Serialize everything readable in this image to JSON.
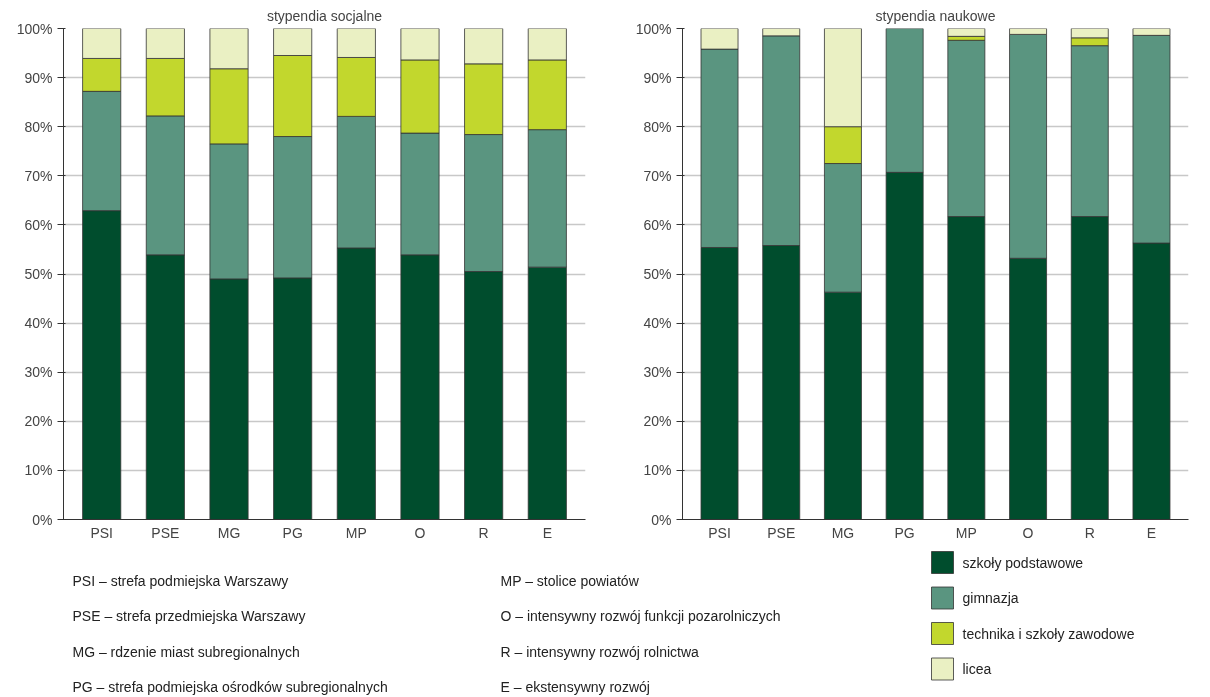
{
  "chart_data": [
    {
      "type": "bar",
      "stacked": true,
      "title": "stypendia socjalne",
      "categories": [
        "PSI",
        "PSE",
        "MG",
        "PG",
        "MP",
        "O",
        "R",
        "E"
      ],
      "series": [
        {
          "color": "#004d2d",
          "values": [
            62.9,
            53.9,
            49.0,
            49.2,
            55.3,
            53.9,
            50.5,
            51.4
          ]
        },
        {
          "color": "#5a9580",
          "values": [
            24.3,
            28.3,
            27.5,
            28.8,
            26.8,
            24.8,
            27.9,
            28.0
          ]
        },
        {
          "color": "#c2d72d",
          "values": [
            6.7,
            11.7,
            15.3,
            16.5,
            12.0,
            14.9,
            14.4,
            14.2
          ]
        },
        {
          "color": "#eaf0c3",
          "values": [
            6.1,
            6.1,
            8.2,
            5.5,
            5.9,
            6.4,
            7.2,
            6.4
          ]
        }
      ],
      "ylim": [
        0,
        100
      ],
      "yticks": [
        {
          "value": 0,
          "label": "0%"
        },
        {
          "value": 10,
          "label": "10%"
        },
        {
          "value": 20,
          "label": "20%"
        },
        {
          "value": 30,
          "label": "30%"
        },
        {
          "value": 40,
          "label": "40%"
        },
        {
          "value": 50,
          "label": "50%"
        },
        {
          "value": 60,
          "label": "60%"
        },
        {
          "value": 70,
          "label": "70%"
        },
        {
          "value": 80,
          "label": "80%"
        },
        {
          "value": 90,
          "label": "90%"
        },
        {
          "value": 100,
          "label": "100%"
        }
      ],
      "grid": "y",
      "annotations": [
        "PSI – strefa podmiejska Warszawy",
        "PSE – strefa przedmiejska Warszawy",
        "MG – rdzenie miast subregionalnych",
        "PG – strefa podmiejska ośrodków subregionalnych",
        "MP – stolice powiatów",
        "O – intensywny rozwój funkcji pozarolniczych",
        "R – intensywny rozwój rolnictwa",
        "E – ekstensywny rozwój"
      ]
    },
    {
      "type": "bar",
      "stacked": true,
      "title": "stypendia naukowe",
      "categories": [
        "PSI",
        "PSE",
        "MG",
        "PG",
        "MP",
        "O",
        "R",
        "E"
      ],
      "series": [
        {
          "name": "szkoły podstawowe",
          "color": "#004d2d",
          "values": [
            55.4,
            55.8,
            46.3,
            70.7,
            61.7,
            53.2,
            61.7,
            56.3
          ]
        },
        {
          "name": "gimnazja",
          "color": "#5a9580",
          "values": [
            40.4,
            42.7,
            26.2,
            29.3,
            35.9,
            45.6,
            34.8,
            42.3
          ]
        },
        {
          "name": "technika i szkoły zawodowe",
          "color": "#c2d72d",
          "values": [
            null,
            null,
            7.5,
            null,
            0.8,
            null,
            1.6,
            null
          ]
        },
        {
          "name": "licea",
          "color": "#eaf0c3",
          "values": [
            4.2,
            1.5,
            20.0,
            null,
            1.6,
            1.2,
            1.9,
            1.4
          ]
        }
      ],
      "ylim": [
        0,
        100
      ],
      "yticks": [
        {
          "value": 0,
          "label": "0%"
        },
        {
          "value": 10,
          "label": "10%"
        },
        {
          "value": 20,
          "label": "20%"
        },
        {
          "value": 30,
          "label": "30%"
        },
        {
          "value": 40,
          "label": "40%"
        },
        {
          "value": 50,
          "label": "50%"
        },
        {
          "value": 60,
          "label": "60%"
        },
        {
          "value": 70,
          "label": "70%"
        },
        {
          "value": 80,
          "label": "80%"
        },
        {
          "value": 90,
          "label": "90%"
        },
        {
          "value": 100,
          "label": "100%"
        }
      ],
      "grid": "y",
      "legend": "bottom right"
    }
  ]
}
